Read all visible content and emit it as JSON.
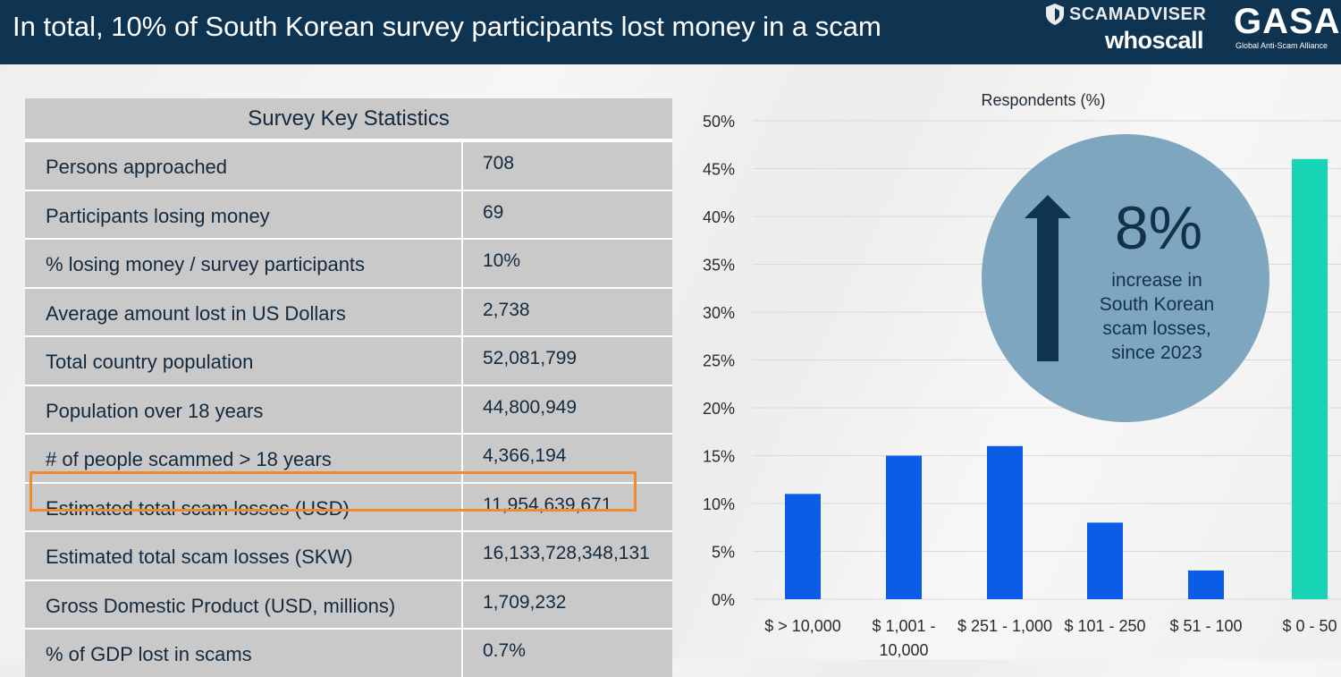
{
  "header": {
    "title": "In total, 10% of South Korean survey participants lost money in a scam",
    "logo_scamadviser": "SCAMADVISER",
    "logo_whoscall": "whoscall",
    "logo_gasa": "GASA",
    "logo_gasa_sub": "Global Anti-Scam Alliance"
  },
  "table": {
    "title": "Survey Key Statistics",
    "rows": [
      {
        "label": "Persons approached",
        "value": "708"
      },
      {
        "label": "Participants losing money",
        "value": "69"
      },
      {
        "label": "% losing money / survey participants",
        "value": "10%"
      },
      {
        "label": "Average amount lost in US Dollars",
        "value": "2,738"
      },
      {
        "label": "Total country population",
        "value": "52,081,799"
      },
      {
        "label": "Population over 18 years",
        "value": "44,800,949"
      },
      {
        "label": "# of people scammed > 18 years",
        "value": "4,366,194"
      },
      {
        "label": "Estimated total scam losses (USD)",
        "value": "11,954,639,671"
      },
      {
        "label": "Estimated total scam losses (SKW)",
        "value": "16,133,728,348,131"
      },
      {
        "label": "Gross Domestic Product (USD, millions)",
        "value": "1,709,232"
      },
      {
        "label": "% of GDP lost in scams",
        "value": "0.7%"
      }
    ],
    "highlight_color": "#f08a2c"
  },
  "callout": {
    "value": "8%",
    "text": "increase in\nSouth Korean\nscam losses,\nsince 2023",
    "icon": "up-arrow-icon"
  },
  "chart_data": {
    "type": "bar",
    "title": "Respondents (%)",
    "categories": [
      "$ > 10,000",
      "$ 1,001 - 10,000",
      "$ 251 - 1,000",
      "$ 101 - 250",
      "$ 51 - 100",
      "$ 0 - 50"
    ],
    "category_lines": [
      [
        "$ > 10,000"
      ],
      [
        "$ 1,001 -",
        "10,000"
      ],
      [
        "$ 251 - 1,000"
      ],
      [
        "$ 101 - 250"
      ],
      [
        "$ 51 - 100"
      ],
      [
        "$ 0 - 50"
      ]
    ],
    "values": [
      11,
      15,
      16,
      8,
      3,
      46
    ],
    "colors": [
      "#0b5ce6",
      "#0b5ce6",
      "#0b5ce6",
      "#0b5ce6",
      "#0b5ce6",
      "#17d4b4"
    ],
    "ylim": [
      0,
      50
    ],
    "yticks": [
      "0%",
      "5%",
      "10%",
      "15%",
      "20%",
      "25%",
      "30%",
      "35%",
      "40%",
      "45%",
      "50%"
    ],
    "grid": true
  }
}
